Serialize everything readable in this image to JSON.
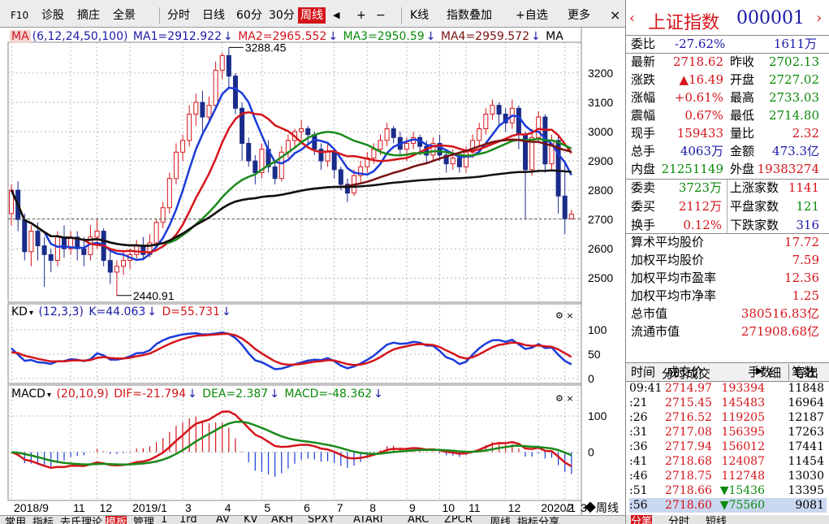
{
  "toolbar": {
    "items": [
      "F10",
      "诊股",
      "摘庄",
      "全景",
      "分时",
      "日线",
      "60分",
      "30分",
      "周线",
      "◀",
      "+",
      "−",
      "K线",
      "指数叠加",
      "自选",
      "更多"
    ],
    "close": "×",
    "active": "周线"
  },
  "main_indicator": {
    "name": "MA",
    "params": "(6,12,24,50,100)",
    "ma1": "MA1=2912.922",
    "ma2": "MA2=2965.552",
    "ma3": "MA3=2950.59",
    "ma4": "MA4=2959.572",
    "ma5": "MA",
    "arrow": "↓",
    "high_label": "3288.45",
    "low_label": "2440.91",
    "y_ticks": [
      "3200",
      "3100",
      "3000",
      "2900",
      "2800",
      "2700",
      "2600",
      "2500"
    ]
  },
  "kd": {
    "name": "KD",
    "params": "(12,3,3)",
    "k": "K=44.063",
    "d": "D=55.731",
    "arrow": "↓",
    "y_ticks": [
      "100",
      "50",
      "0"
    ]
  },
  "macd": {
    "name": "MACD",
    "params": "(20,10,9)",
    "dif": "DIF=-21.794",
    "dea": "DEA=2.387",
    "macd": "MACD=-48.362",
    "arrow": "↓",
    "y_ticks": [
      "100",
      "0"
    ]
  },
  "x_axis": [
    "2018/9",
    "11",
    "12",
    "2019/1",
    "3",
    "4",
    "5",
    "6",
    "7",
    "8",
    "9",
    "10",
    "11",
    "12",
    "2020/1",
    "2",
    "3"
  ],
  "period_label": "◆周线",
  "colors": {
    "red": "#d4151b",
    "blue": "#1a3bd8",
    "green": "#1a8a1a",
    "black": "#111111",
    "darkred": "#7a1010",
    "candle_down": "#1a2c8a"
  },
  "index": {
    "name": "上证指数",
    "code": "000001"
  },
  "quote": {
    "weibi_label": "委比",
    "weibi": "-27.62%",
    "weibi_vol": "1611万",
    "zuixin_label": "最新",
    "zuixin": "2718.62",
    "zuoshou_label": "昨收",
    "zuoshou": "2702.13",
    "zhangdie_label": "涨跌",
    "zhangdie": "▲16.49",
    "kaipan_label": "开盘",
    "kaipan": "2727.02",
    "zhangfu_label": "涨幅",
    "zhangfu": "+0.61%",
    "zuigao_label": "最高",
    "zuigao": "2733.03",
    "zhenfu_label": "震幅",
    "zhenfu": "0.67%",
    "zuidi_label": "最低",
    "zuidi": "2714.80",
    "xianshou_label": "现手",
    "xianshou": "159433",
    "liangbi_label": "量比",
    "liangbi": "2.32",
    "zongshou_label": "总手",
    "zongshou": "4063万",
    "jine_label": "金额",
    "jine": "473.3亿",
    "neipan_label": "内盘",
    "neipan": "21251149",
    "waipan_label": "外盘",
    "waipan": "19383274",
    "weimai_label": "委卖",
    "weimai": "3723万",
    "up_label": "上涨家数",
    "up": "1141",
    "weimai2_label": "委买",
    "weimai2": "2112万",
    "flat_label": "平盘家数",
    "flat": "121",
    "huanshou_label": "换手",
    "huanshou": "0.12%",
    "down_label": "下跌家数",
    "down": "316"
  },
  "stats": [
    {
      "label": "算术平均股价",
      "value": "17.72"
    },
    {
      "label": "加权平均股价",
      "value": "7.59"
    },
    {
      "label": "加权平均市盈率",
      "value": "12.36"
    },
    {
      "label": "加权平均市净率",
      "value": "1.25"
    },
    {
      "label": "总市值",
      "value": "380516.83亿"
    },
    {
      "label": "流通市值",
      "value": "271908.68亿"
    }
  ],
  "tick_panel": {
    "title": "分时成交",
    "tab_detail": "细",
    "tab_export": "导出",
    "headers": [
      "时间",
      "成交价",
      "手数",
      "笔数"
    ],
    "rows": [
      {
        "time": "09:41",
        "price": "2714.97",
        "vol": "193394",
        "count": "11848",
        "dir": "up"
      },
      {
        "time": ":21",
        "price": "2715.45",
        "vol": "145483",
        "count": "16964",
        "dir": "up"
      },
      {
        "time": ":26",
        "price": "2716.52",
        "vol": "119205",
        "count": "12187",
        "dir": "up"
      },
      {
        "time": ":31",
        "price": "2717.08",
        "vol": "156395",
        "count": "17263",
        "dir": "up"
      },
      {
        "time": ":36",
        "price": "2717.94",
        "vol": "156012",
        "count": "17441",
        "dir": "up"
      },
      {
        "time": ":41",
        "price": "2718.68",
        "vol": "124087",
        "count": "11454",
        "dir": "up"
      },
      {
        "time": ":46",
        "price": "2718.75",
        "vol": "112748",
        "count": "13030",
        "dir": "up"
      },
      {
        "time": ":51",
        "price": "2718.66",
        "vol": "▼15436",
        "count": "13395",
        "dir": "down"
      },
      {
        "time": ":56",
        "price": "2718.60",
        "vol": "▼75560",
        "count": "9081",
        "dir": "down"
      }
    ]
  },
  "bottom_tabs": [
    "常用",
    "指标",
    "去氏理论",
    "模板",
    "管理",
    "1",
    "1rd",
    "AV",
    "KV",
    "AKH",
    "SPXY",
    "ATARI",
    "ARC",
    "ZPCR",
    "周线",
    "指标分享"
  ],
  "right_bottom_tabs": [
    "分笔",
    "分时",
    "短线"
  ],
  "chart_data": {
    "type": "candlestick",
    "x_labels": [
      "2018/9",
      "11",
      "12",
      "2019/1",
      "3",
      "4",
      "5",
      "6",
      "7",
      "8",
      "9",
      "10",
      "11",
      "12",
      "2020/1",
      "2",
      "3"
    ],
    "ylim": [
      2420,
      3300
    ],
    "candles": [
      [
        2720,
        2800,
        2680,
        2820
      ],
      [
        2800,
        2700,
        2660,
        2830
      ],
      [
        2700,
        2590,
        2560,
        2720
      ],
      [
        2590,
        2660,
        2540,
        2680
      ],
      [
        2660,
        2610,
        2560,
        2690
      ],
      [
        2610,
        2580,
        2470,
        2640
      ],
      [
        2580,
        2560,
        2520,
        2600
      ],
      [
        2560,
        2640,
        2540,
        2660
      ],
      [
        2640,
        2600,
        2570,
        2680
      ],
      [
        2600,
        2640,
        2580,
        2660
      ],
      [
        2640,
        2600,
        2560,
        2660
      ],
      [
        2600,
        2580,
        2540,
        2640
      ],
      [
        2580,
        2640,
        2560,
        2680
      ],
      [
        2640,
        2660,
        2600,
        2700
      ],
      [
        2660,
        2560,
        2540,
        2670
      ],
      [
        2560,
        2520,
        2480,
        2590
      ],
      [
        2520,
        2540,
        2440,
        2560
      ],
      [
        2540,
        2560,
        2510,
        2590
      ],
      [
        2560,
        2580,
        2530,
        2600
      ],
      [
        2580,
        2610,
        2560,
        2630
      ],
      [
        2610,
        2580,
        2560,
        2640
      ],
      [
        2580,
        2620,
        2570,
        2650
      ],
      [
        2620,
        2690,
        2600,
        2700
      ],
      [
        2690,
        2740,
        2670,
        2760
      ],
      [
        2740,
        2840,
        2720,
        2860
      ],
      [
        2840,
        2930,
        2820,
        2960
      ],
      [
        2930,
        2970,
        2900,
        2990
      ],
      [
        2970,
        3060,
        2950,
        3090
      ],
      [
        3060,
        3100,
        3020,
        3130
      ],
      [
        3100,
        3050,
        3000,
        3140
      ],
      [
        3050,
        3090,
        3030,
        3120
      ],
      [
        3090,
        3210,
        3080,
        3240
      ],
      [
        3210,
        3260,
        3180,
        3270
      ],
      [
        3260,
        3190,
        3150,
        3288
      ],
      [
        3190,
        3080,
        3060,
        3200
      ],
      [
        3080,
        2960,
        2900,
        3100
      ],
      [
        2960,
        2900,
        2880,
        2980
      ],
      [
        2900,
        2860,
        2820,
        2920
      ],
      [
        2860,
        2940,
        2840,
        2960
      ],
      [
        2940,
        2880,
        2860,
        2970
      ],
      [
        2880,
        2840,
        2820,
        2900
      ],
      [
        2840,
        2930,
        2830,
        2950
      ],
      [
        2930,
        2970,
        2910,
        2990
      ],
      [
        2970,
        3000,
        2950,
        3010
      ],
      [
        3000,
        3010,
        2970,
        3040
      ],
      [
        3010,
        2990,
        2960,
        3020
      ],
      [
        2990,
        2940,
        2920,
        3000
      ],
      [
        2940,
        2900,
        2870,
        2960
      ],
      [
        2900,
        2930,
        2880,
        2960
      ],
      [
        2930,
        2870,
        2840,
        2940
      ],
      [
        2870,
        2820,
        2800,
        2880
      ],
      [
        2820,
        2790,
        2760,
        2840
      ],
      [
        2790,
        2850,
        2780,
        2870
      ],
      [
        2850,
        2880,
        2820,
        2900
      ],
      [
        2880,
        2910,
        2860,
        2930
      ],
      [
        2910,
        2940,
        2890,
        2960
      ],
      [
        2940,
        2970,
        2920,
        2990
      ],
      [
        2970,
        3010,
        2950,
        3030
      ],
      [
        3010,
        2980,
        2960,
        3020
      ],
      [
        2980,
        2940,
        2920,
        3000
      ],
      [
        2940,
        2960,
        2900,
        2980
      ],
      [
        2960,
        2980,
        2940,
        3000
      ],
      [
        2980,
        2950,
        2920,
        2990
      ],
      [
        2950,
        2920,
        2890,
        2970
      ],
      [
        2920,
        2960,
        2900,
        2980
      ],
      [
        2960,
        2920,
        2900,
        2990
      ],
      [
        2920,
        2890,
        2860,
        2940
      ],
      [
        2890,
        2910,
        2870,
        2940
      ],
      [
        2910,
        2880,
        2860,
        2930
      ],
      [
        2880,
        2930,
        2860,
        2950
      ],
      [
        2930,
        2970,
        2910,
        2990
      ],
      [
        2970,
        3010,
        2950,
        3030
      ],
      [
        3010,
        3060,
        2990,
        3080
      ],
      [
        3060,
        3090,
        3040,
        3110
      ],
      [
        3090,
        3060,
        3020,
        3100
      ],
      [
        3060,
        3030,
        3000,
        3080
      ],
      [
        3030,
        3080,
        3010,
        3110
      ],
      [
        3080,
        2990,
        2940,
        3090
      ],
      [
        2990,
        2870,
        2700,
        3000
      ],
      [
        2870,
        2980,
        2850,
        3010
      ],
      [
        2980,
        3050,
        2960,
        3070
      ],
      [
        3050,
        2890,
        2860,
        3060
      ],
      [
        2890,
        2970,
        2870,
        2990
      ],
      [
        2970,
        2780,
        2720,
        2990
      ],
      [
        2780,
        2702,
        2650,
        2900
      ],
      [
        2702,
        2718,
        2700,
        2733
      ]
    ]
  }
}
